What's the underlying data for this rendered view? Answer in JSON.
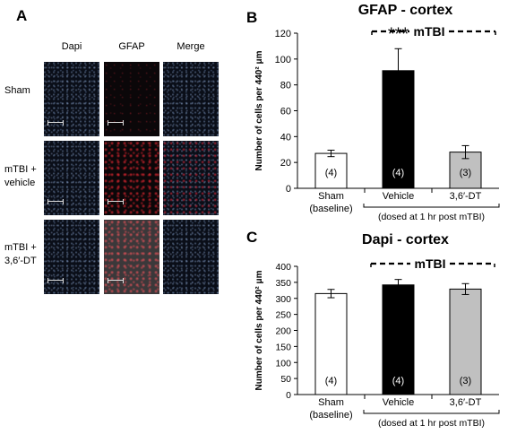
{
  "panel_a": {
    "letter": "A",
    "columns": [
      "Dapi",
      "GFAP",
      "Merge"
    ],
    "rows": [
      {
        "label_lines": [
          "Sham"
        ]
      },
      {
        "label_lines": [
          "mTBI +",
          "vehicle"
        ]
      },
      {
        "label_lines": [
          "mTBI +",
          "3,6′-DT"
        ]
      }
    ]
  },
  "chart_data": [
    {
      "panel_letter": "B",
      "type": "bar",
      "title": "GFAP - cortex",
      "ylabel": "Number of cells per 440² μm",
      "ylim": [
        0,
        120
      ],
      "yticks": [
        0,
        20,
        40,
        60,
        80,
        100,
        120
      ],
      "categories": [
        [
          "Sham",
          "(baseline)"
        ],
        [
          "Vehicle"
        ],
        [
          "3,6′-DT"
        ]
      ],
      "values": [
        27,
        91,
        28
      ],
      "errors": [
        2.5,
        17,
        5
      ],
      "n_labels": [
        "(4)",
        "(4)",
        "(3)"
      ],
      "bar_colors": [
        "#ffffff",
        "#000000",
        "#c0c0c0"
      ],
      "n_label_colors": [
        "#000000",
        "#ffffff",
        "#000000"
      ],
      "significance": {
        "bar_index": 1,
        "text": "***"
      },
      "group_bracket_label": "mTBI",
      "footnote": "(dosed at 1 hr post mTBI)"
    },
    {
      "panel_letter": "C",
      "type": "bar",
      "title": "Dapi - cortex",
      "ylabel": "Number of cells per 440² μm",
      "ylim": [
        0,
        400
      ],
      "yticks": [
        0,
        50,
        100,
        150,
        200,
        250,
        300,
        350,
        400
      ],
      "categories": [
        [
          "Sham",
          "(baseline)"
        ],
        [
          "Vehicle"
        ],
        [
          "3,6′-DT"
        ]
      ],
      "values": [
        315,
        342,
        329
      ],
      "errors": [
        13,
        17,
        17
      ],
      "n_labels": [
        "(4)",
        "(4)",
        "(3)"
      ],
      "bar_colors": [
        "#ffffff",
        "#000000",
        "#c0c0c0"
      ],
      "n_label_colors": [
        "#000000",
        "#ffffff",
        "#000000"
      ],
      "group_bracket_label": "mTBI",
      "footnote": "(dosed at 1 hr post mTBI)"
    }
  ]
}
